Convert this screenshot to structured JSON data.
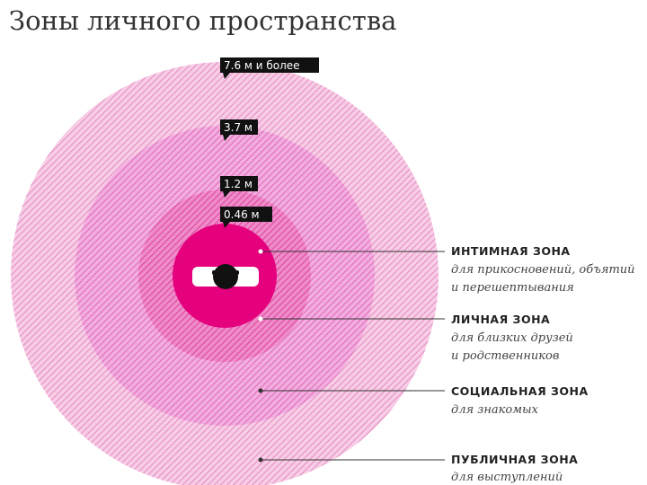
{
  "title": "Зоны личного пространства",
  "distances": [
    "7.6 м и более",
    "3.7 м",
    "1.2 м",
    "0.46 м"
  ],
  "zones": [
    {
      "name": "ИНТИМНАЯ ЗОНА",
      "description": [
        "для прикосновений, объятий",
        "и перешептывания"
      ]
    },
    {
      "name": "ЛИЧНАЯ ЗОНА",
      "description": [
        "для близких друзей",
        "и родственников"
      ]
    },
    {
      "name": "СОЦИАЛЬНАЯ ЗОНА",
      "description": [
        "для знакомых"
      ]
    },
    {
      "name": "ПУБЛИЧНАЯ ЗОНА",
      "description": [
        "для выступлений"
      ]
    }
  ]
}
